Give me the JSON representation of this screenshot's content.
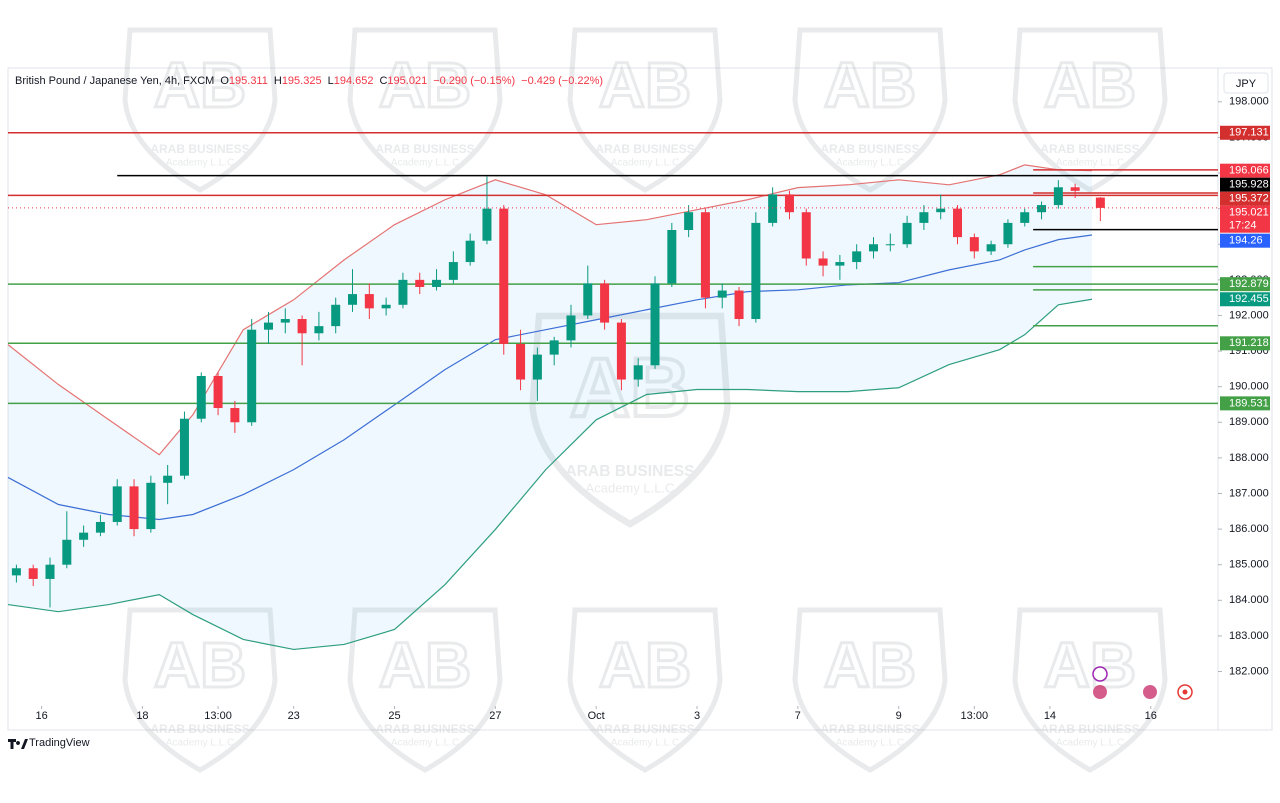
{
  "chart_data": {
    "type": "candlestick",
    "symbol": "British Pound / Japanese Yen, 4h, FXCM",
    "ohlc_letters": [
      "O",
      "H",
      "L",
      "C"
    ],
    "header_stats": [
      "−0.290 (−0.15%)",
      "−0.429 (−0.22%)"
    ],
    "currency": "JPY",
    "countdown": "17:24",
    "brand": "TradingView",
    "watermark": [
      "ARAB BUSINESS",
      "Academy L.L.C"
    ],
    "up_color": "#089981",
    "down_color": "#f23645",
    "xlim": [
      0,
      144
    ],
    "ylim": [
      181.2,
      198.95
    ],
    "xticks": [
      {
        "value": 4,
        "label": "16"
      },
      {
        "value": 16,
        "label": "18"
      },
      {
        "value": 25,
        "label": "13:00"
      },
      {
        "value": 34,
        "label": "23"
      },
      {
        "value": 46,
        "label": "25"
      },
      {
        "value": 58,
        "label": "27"
      },
      {
        "value": 70,
        "label": "Oct"
      },
      {
        "value": 82,
        "label": "3"
      },
      {
        "value": 94,
        "label": "7"
      },
      {
        "value": 106,
        "label": "9"
      },
      {
        "value": 115,
        "label": "13:00"
      },
      {
        "value": 124,
        "label": "14"
      },
      {
        "value": 136,
        "label": "16"
      }
    ],
    "yticks": [
      {
        "value": 182,
        "label": "182.000"
      },
      {
        "value": 183,
        "label": "183.000"
      },
      {
        "value": 184,
        "label": "184.000"
      },
      {
        "value": 185,
        "label": "185.000"
      },
      {
        "value": 186,
        "label": "186.000"
      },
      {
        "value": 187,
        "label": "187.000"
      },
      {
        "value": 188,
        "label": "188.000"
      },
      {
        "value": 189,
        "label": "189.000"
      },
      {
        "value": 190,
        "label": "190.000"
      },
      {
        "value": 191,
        "label": "191.000"
      },
      {
        "value": 192,
        "label": "192.000"
      },
      {
        "value": 193,
        "label": "193.000"
      },
      {
        "value": 194,
        "label": "194.000"
      },
      {
        "value": 195,
        "label": "195.000"
      },
      {
        "value": 196,
        "label": "196.000"
      },
      {
        "value": 197,
        "label": "197.000"
      },
      {
        "value": 198,
        "label": "198.000"
      }
    ],
    "x": [
      1,
      3,
      5,
      7,
      9,
      11,
      13,
      15,
      17,
      19,
      21,
      23,
      25,
      27,
      29,
      31,
      33,
      35,
      37,
      39,
      41,
      43,
      45,
      47,
      49,
      51,
      53,
      55,
      57,
      59,
      61,
      63,
      65,
      67,
      69,
      71,
      73,
      75,
      77,
      79,
      81,
      83,
      85,
      87,
      89,
      91,
      93,
      95,
      97,
      99,
      101,
      103,
      105,
      107,
      109,
      111,
      113,
      115,
      117,
      119,
      121,
      123,
      125,
      127,
      130
    ],
    "ohlc": [
      [
        184.7,
        185.0,
        184.5,
        184.9
      ],
      [
        184.9,
        185.0,
        184.4,
        184.6
      ],
      [
        184.6,
        185.2,
        183.8,
        185.0
      ],
      [
        185.0,
        186.5,
        184.9,
        185.7
      ],
      [
        185.7,
        186.1,
        185.5,
        185.9
      ],
      [
        185.9,
        186.4,
        185.8,
        186.2
      ],
      [
        186.2,
        187.4,
        186.1,
        187.2
      ],
      [
        187.2,
        187.4,
        185.8,
        186.0
      ],
      [
        186.0,
        187.5,
        185.9,
        187.3
      ],
      [
        187.3,
        187.8,
        186.7,
        187.5
      ],
      [
        187.5,
        189.3,
        187.4,
        189.1
      ],
      [
        189.1,
        190.4,
        189.0,
        190.3
      ],
      [
        190.3,
        190.4,
        189.2,
        189.4
      ],
      [
        189.4,
        189.6,
        188.7,
        189.0
      ],
      [
        189.0,
        191.9,
        188.9,
        191.6
      ],
      [
        191.6,
        192.1,
        191.2,
        191.8
      ],
      [
        191.8,
        192.2,
        191.5,
        191.9
      ],
      [
        191.9,
        192.0,
        190.6,
        191.5
      ],
      [
        191.5,
        192.1,
        191.3,
        191.7
      ],
      [
        191.7,
        192.5,
        191.5,
        192.3
      ],
      [
        192.3,
        193.3,
        192.1,
        192.6
      ],
      [
        192.6,
        192.9,
        191.9,
        192.2
      ],
      [
        192.2,
        192.5,
        192.0,
        192.3
      ],
      [
        192.3,
        193.2,
        192.2,
        193.0
      ],
      [
        193.0,
        193.2,
        192.6,
        192.8
      ],
      [
        192.8,
        193.3,
        192.7,
        193.0
      ],
      [
        193.0,
        193.8,
        192.9,
        193.5
      ],
      [
        193.5,
        194.3,
        193.4,
        194.1
      ],
      [
        194.1,
        195.9,
        194.0,
        195.0
      ],
      [
        195.0,
        195.1,
        190.9,
        191.2
      ],
      [
        191.2,
        191.6,
        189.9,
        190.2
      ],
      [
        190.2,
        191.1,
        189.6,
        190.9
      ],
      [
        190.9,
        191.4,
        190.6,
        191.3
      ],
      [
        191.3,
        192.3,
        191.1,
        192.0
      ],
      [
        192.0,
        193.4,
        191.9,
        192.9
      ],
      [
        192.9,
        193.0,
        191.6,
        191.8
      ],
      [
        191.8,
        191.9,
        189.9,
        190.2
      ],
      [
        190.2,
        190.8,
        190.0,
        190.6
      ],
      [
        190.6,
        193.1,
        190.5,
        192.9
      ],
      [
        192.9,
        194.6,
        192.8,
        194.4
      ],
      [
        194.4,
        195.1,
        194.2,
        194.9
      ],
      [
        194.9,
        195.0,
        192.2,
        192.5
      ],
      [
        192.5,
        192.9,
        192.2,
        192.7
      ],
      [
        192.7,
        192.8,
        191.7,
        191.9
      ],
      [
        191.9,
        194.9,
        191.8,
        194.6
      ],
      [
        194.6,
        195.6,
        194.5,
        195.4
      ],
      [
        195.4,
        195.5,
        194.7,
        194.9
      ],
      [
        194.9,
        195.0,
        193.4,
        193.6
      ],
      [
        193.6,
        193.8,
        193.1,
        193.4
      ],
      [
        193.4,
        193.7,
        193.0,
        193.5
      ],
      [
        193.5,
        194.0,
        193.3,
        193.8
      ],
      [
        193.8,
        194.2,
        193.6,
        194.0
      ],
      [
        194.0,
        194.3,
        193.8,
        194.0
      ],
      [
        194.0,
        194.8,
        193.9,
        194.6
      ],
      [
        194.6,
        195.1,
        194.4,
        194.9
      ],
      [
        194.9,
        195.4,
        194.7,
        195.0
      ],
      [
        195.0,
        195.1,
        194.0,
        194.2
      ],
      [
        194.2,
        194.3,
        193.6,
        193.8
      ],
      [
        193.8,
        194.1,
        193.7,
        194.0
      ],
      [
        194.0,
        194.7,
        193.9,
        194.6
      ],
      [
        194.6,
        195.0,
        194.5,
        194.9
      ],
      [
        194.9,
        195.2,
        194.7,
        195.1
      ],
      [
        195.1,
        195.8,
        195.0,
        195.6
      ],
      [
        195.6,
        195.7,
        195.3,
        195.5
      ],
      [
        195.311,
        195.325,
        194.652,
        195.021
      ]
    ],
    "band_x": [
      0,
      6,
      12,
      18,
      22,
      28,
      34,
      40,
      46,
      52,
      58,
      64,
      70,
      76,
      82,
      88,
      94,
      100,
      106,
      112,
      118,
      121,
      125,
      129
    ],
    "bands": [
      {
        "color": "#e57373",
        "values": [
          191.18,
          190.06,
          189.07,
          188.09,
          189.21,
          191.6,
          192.44,
          193.56,
          194.55,
          195.25,
          195.81,
          195.39,
          194.55,
          194.69,
          194.97,
          195.25,
          195.59,
          195.67,
          195.81,
          195.67,
          195.95,
          196.23,
          196.09,
          196.066
        ]
      },
      {
        "color": "#3d6fd6",
        "values": [
          187.45,
          186.69,
          186.41,
          186.27,
          186.41,
          186.97,
          187.67,
          188.51,
          189.49,
          190.48,
          191.32,
          191.6,
          191.88,
          192.16,
          192.44,
          192.67,
          192.72,
          192.86,
          192.92,
          193.28,
          193.56,
          193.84,
          194.13,
          194.26
        ]
      },
      {
        "color": "#2e9e7f",
        "values": [
          183.88,
          183.68,
          183.88,
          184.16,
          183.6,
          182.9,
          182.62,
          182.76,
          183.18,
          184.44,
          185.99,
          187.67,
          189.07,
          189.78,
          189.92,
          189.92,
          189.86,
          189.86,
          189.97,
          190.62,
          191.04,
          191.46,
          192.3,
          192.455
        ]
      }
    ],
    "band_label_colors": [
      "#f23645",
      "#2962ff",
      "#089981"
    ],
    "levels": [
      {
        "value": 197.131,
        "color": "#d32f2f",
        "from": 0
      },
      {
        "value": 195.928,
        "color": "#000000",
        "from": 13
      },
      {
        "value": 195.372,
        "color": "#d32f2f",
        "from": 0
      },
      {
        "value": 192.879,
        "color": "#43a047",
        "from": 0
      },
      {
        "value": 191.218,
        "color": "#43a047",
        "from": 0
      },
      {
        "value": 189.531,
        "color": "#43a047",
        "from": 0
      }
    ],
    "rays": [
      {
        "value": 196.09,
        "color": "#d32f2f",
        "from": 122
      },
      {
        "value": 195.44,
        "color": "#d32f2f",
        "from": 122
      },
      {
        "value": 194.41,
        "color": "#000000",
        "from": 122
      },
      {
        "value": 193.37,
        "color": "#43a047",
        "from": 122
      },
      {
        "value": 192.72,
        "color": "#43a047",
        "from": 122
      },
      {
        "value": 191.71,
        "color": "#43a047",
        "from": 122
      }
    ]
  }
}
